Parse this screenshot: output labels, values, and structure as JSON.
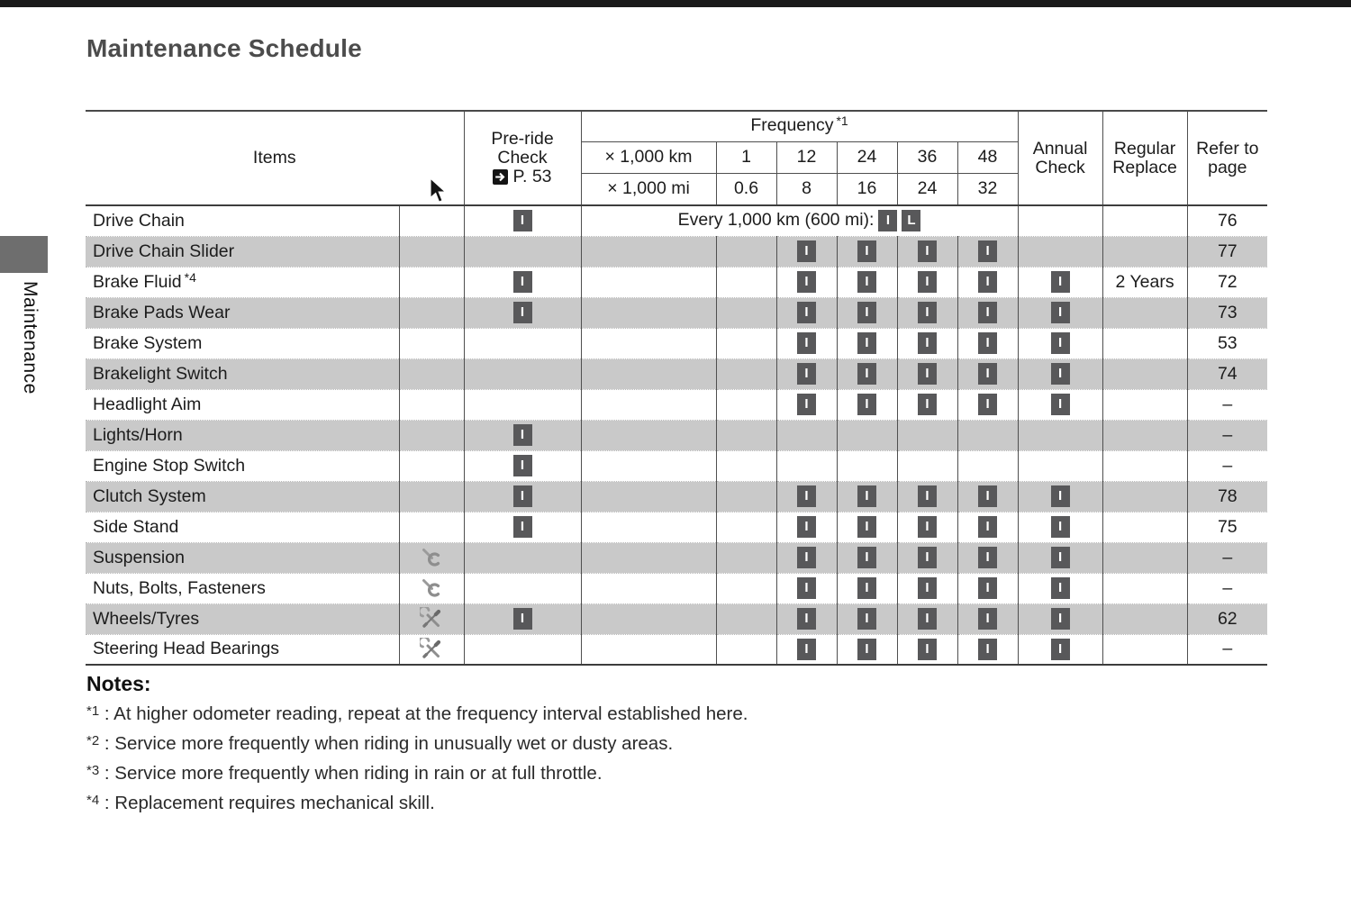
{
  "page": {
    "title": "Maintenance Schedule",
    "sidebar_label": "Maintenance"
  },
  "table": {
    "header": {
      "items": "Items",
      "pre_ride_line1": "Pre-ride",
      "pre_ride_line2": "Check",
      "pre_ride_ref": "P. 53",
      "frequency": "Frequency",
      "frequency_note": "*1",
      "km_label": "× 1,000 km",
      "mi_label": "× 1,000 mi",
      "km_values": [
        "1",
        "12",
        "24",
        "36",
        "48"
      ],
      "mi_values": [
        "0.6",
        "8",
        "16",
        "24",
        "32"
      ],
      "annual_line1": "Annual",
      "annual_line2": "Check",
      "regular_line1": "Regular",
      "regular_line2": "Replace",
      "refer_line1": "Refer to",
      "refer_line2": "page"
    },
    "badge_inspect": "I",
    "badge_lubricate": "L",
    "drive_chain_frequency_text": "Every 1,000 km (600 mi):",
    "rows": [
      {
        "name": "Drive Chain",
        "note": "",
        "tool": "",
        "pre_ride": true,
        "freq_special": true,
        "freq": [
          false,
          false,
          false,
          false,
          false
        ],
        "annual": false,
        "regular": "",
        "page": "76",
        "shaded": false
      },
      {
        "name": "Drive Chain Slider",
        "note": "",
        "tool": "",
        "pre_ride": false,
        "freq_special": false,
        "freq": [
          false,
          true,
          true,
          true,
          true
        ],
        "annual": false,
        "regular": "",
        "page": "77",
        "shaded": true
      },
      {
        "name": "Brake Fluid",
        "note": "*4",
        "tool": "",
        "pre_ride": true,
        "freq_special": false,
        "freq": [
          false,
          true,
          true,
          true,
          true
        ],
        "annual": true,
        "regular": "2 Years",
        "page": "72",
        "shaded": false
      },
      {
        "name": "Brake Pads Wear",
        "note": "",
        "tool": "",
        "pre_ride": true,
        "freq_special": false,
        "freq": [
          false,
          true,
          true,
          true,
          true
        ],
        "annual": true,
        "regular": "",
        "page": "73",
        "shaded": true
      },
      {
        "name": "Brake System",
        "note": "",
        "tool": "",
        "pre_ride": false,
        "freq_special": false,
        "freq": [
          false,
          true,
          true,
          true,
          true
        ],
        "annual": true,
        "regular": "",
        "page": "53",
        "shaded": false
      },
      {
        "name": "Brakelight Switch",
        "note": "",
        "tool": "",
        "pre_ride": false,
        "freq_special": false,
        "freq": [
          false,
          true,
          true,
          true,
          true
        ],
        "annual": true,
        "regular": "",
        "page": "74",
        "shaded": true
      },
      {
        "name": "Headlight Aim",
        "note": "",
        "tool": "",
        "pre_ride": false,
        "freq_special": false,
        "freq": [
          false,
          true,
          true,
          true,
          true
        ],
        "annual": true,
        "regular": "",
        "page": "–",
        "shaded": false
      },
      {
        "name": "Lights/Horn",
        "note": "",
        "tool": "",
        "pre_ride": true,
        "freq_special": false,
        "freq": [
          false,
          false,
          false,
          false,
          false
        ],
        "annual": false,
        "regular": "",
        "page": "–",
        "shaded": true
      },
      {
        "name": "Engine Stop Switch",
        "note": "",
        "tool": "",
        "pre_ride": true,
        "freq_special": false,
        "freq": [
          false,
          false,
          false,
          false,
          false
        ],
        "annual": false,
        "regular": "",
        "page": "–",
        "shaded": false
      },
      {
        "name": "Clutch System",
        "note": "",
        "tool": "",
        "pre_ride": true,
        "freq_special": false,
        "freq": [
          false,
          true,
          true,
          true,
          true
        ],
        "annual": true,
        "regular": "",
        "page": "78",
        "shaded": true
      },
      {
        "name": "Side Stand",
        "note": "",
        "tool": "",
        "pre_ride": true,
        "freq_special": false,
        "freq": [
          false,
          true,
          true,
          true,
          true
        ],
        "annual": true,
        "regular": "",
        "page": "75",
        "shaded": false
      },
      {
        "name": "Suspension",
        "note": "",
        "tool": "wrench",
        "pre_ride": false,
        "freq_special": false,
        "freq": [
          false,
          true,
          true,
          true,
          true
        ],
        "annual": true,
        "regular": "",
        "page": "–",
        "shaded": true
      },
      {
        "name": "Nuts, Bolts, Fasteners",
        "note": "",
        "tool": "wrench",
        "pre_ride": false,
        "freq_special": false,
        "freq": [
          false,
          true,
          true,
          true,
          true
        ],
        "annual": true,
        "regular": "",
        "page": "–",
        "shaded": false
      },
      {
        "name": "Wheels/Tyres",
        "note": "",
        "tool": "crossed-tools",
        "pre_ride": true,
        "freq_special": false,
        "freq": [
          false,
          true,
          true,
          true,
          true
        ],
        "annual": true,
        "regular": "",
        "page": "62",
        "shaded": true
      },
      {
        "name": "Steering Head Bearings",
        "note": "",
        "tool": "crossed-tools",
        "pre_ride": false,
        "freq_special": false,
        "freq": [
          false,
          true,
          true,
          true,
          true
        ],
        "annual": true,
        "regular": "",
        "page": "–",
        "shaded": false
      }
    ]
  },
  "notes": {
    "heading": "Notes:",
    "items": [
      {
        "mark": "*1",
        "sep": " : ",
        "text": "At higher odometer reading, repeat at the frequency interval established here."
      },
      {
        "mark": "*2",
        "sep": " : ",
        "text": "Service more frequently when riding in unusually wet or dusty areas."
      },
      {
        "mark": "*3",
        "sep": " : ",
        "text": "Service more frequently when riding in rain or at full throttle."
      },
      {
        "mark": "*4",
        "sep": " : ",
        "text": "Replacement requires mechanical skill."
      }
    ]
  }
}
